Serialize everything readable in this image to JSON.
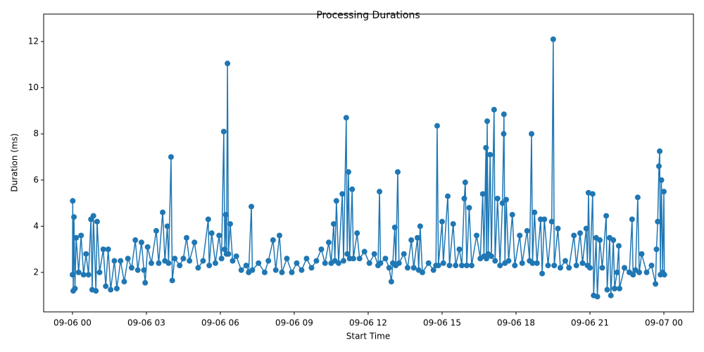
{
  "chart_data": {
    "type": "line",
    "title": "Processing Durations",
    "xlabel": "Start Time",
    "ylabel": "Duration (ms)",
    "x": [
      0,
      0.01,
      0.03,
      0.06,
      0.1,
      0.15,
      0.25,
      0.35,
      0.45,
      0.55,
      0.65,
      0.75,
      0.8,
      0.85,
      0.95,
      1.0,
      1.1,
      1.25,
      1.35,
      1.45,
      1.55,
      1.7,
      1.8,
      1.95,
      2.1,
      2.25,
      2.4,
      2.55,
      2.65,
      2.8,
      2.9,
      2.95,
      3.05,
      3.2,
      3.4,
      3.5,
      3.66,
      3.75,
      3.85,
      3.9,
      4.0,
      4.05,
      4.15,
      4.35,
      4.5,
      4.63,
      4.75,
      4.95,
      5.1,
      5.3,
      5.51,
      5.55,
      5.65,
      5.8,
      5.95,
      6.05,
      6.14,
      6.18,
      6.22,
      6.25,
      6.29,
      6.33,
      6.4,
      6.5,
      6.65,
      6.85,
      7.05,
      7.15,
      7.26,
      7.3,
      7.55,
      7.8,
      7.95,
      8.14,
      8.25,
      8.4,
      8.5,
      8.7,
      8.9,
      9.1,
      9.3,
      9.5,
      9.7,
      9.9,
      10.1,
      10.25,
      10.4,
      10.5,
      10.6,
      10.65,
      10.71,
      10.8,
      10.95,
      11.0,
      11.11,
      11.15,
      11.2,
      11.25,
      11.35,
      11.4,
      11.55,
      11.65,
      11.85,
      12.05,
      12.25,
      12.4,
      12.46,
      12.5,
      12.7,
      12.85,
      12.94,
      13.0,
      13.08,
      13.12,
      13.2,
      13.25,
      13.45,
      13.6,
      13.75,
      13.85,
      14.0,
      14.05,
      14.11,
      14.2,
      14.45,
      14.65,
      14.75,
      14.8,
      14.85,
      15.0,
      15.05,
      15.23,
      15.3,
      15.45,
      15.55,
      15.7,
      15.8,
      15.9,
      15.94,
      16.0,
      16.1,
      16.2,
      16.4,
      16.55,
      16.65,
      16.7,
      16.78,
      16.8,
      16.83,
      16.87,
      16.95,
      17.0,
      17.11,
      17.15,
      17.25,
      17.35,
      17.45,
      17.5,
      17.51,
      17.55,
      17.6,
      17.7,
      17.85,
      17.95,
      18.15,
      18.25,
      18.45,
      18.55,
      18.63,
      18.67,
      18.75,
      18.85,
      19.0,
      19.06,
      19.15,
      19.3,
      19.45,
      19.51,
      19.55,
      19.7,
      19.8,
      20.0,
      20.15,
      20.35,
      20.45,
      20.6,
      20.7,
      20.85,
      20.9,
      20.94,
      21.0,
      21.11,
      21.15,
      21.25,
      21.3,
      21.4,
      21.5,
      21.66,
      21.7,
      21.8,
      21.85,
      21.95,
      22.0,
      22.1,
      22.17,
      22.2,
      22.4,
      22.6,
      22.71,
      22.75,
      22.85,
      22.94,
      23.0,
      23.1,
      23.3,
      23.5,
      23.66,
      23.7,
      23.75,
      23.8,
      23.83,
      23.86,
      23.9,
      23.95,
      24.0,
      24.02
    ],
    "series": [
      {
        "name": "Duration",
        "color": "#1f77b4",
        "values": [
          1.9,
          5.1,
          1.2,
          4.4,
          1.3,
          3.5,
          2.0,
          3.6,
          1.9,
          2.8,
          1.9,
          4.3,
          1.25,
          4.45,
          1.2,
          4.2,
          2.0,
          3.0,
          1.4,
          3.0,
          1.25,
          2.5,
          1.3,
          2.5,
          1.6,
          2.6,
          2.2,
          3.4,
          2.1,
          3.3,
          2.1,
          1.55,
          3.1,
          2.4,
          3.8,
          2.4,
          4.6,
          2.5,
          4.0,
          2.4,
          7.0,
          1.65,
          2.6,
          2.3,
          2.6,
          3.5,
          2.5,
          3.3,
          2.2,
          2.5,
          4.3,
          2.3,
          3.7,
          2.4,
          3.6,
          2.6,
          8.1,
          3.0,
          4.5,
          2.8,
          11.05,
          2.8,
          4.1,
          2.5,
          2.7,
          2.1,
          2.3,
          2.0,
          4.85,
          2.1,
          2.4,
          2.0,
          2.5,
          3.4,
          2.1,
          3.6,
          2.0,
          2.6,
          2.0,
          2.4,
          2.1,
          2.6,
          2.2,
          2.5,
          3.0,
          2.4,
          3.3,
          2.4,
          4.1,
          2.5,
          5.1,
          2.4,
          5.4,
          2.5,
          8.7,
          2.8,
          6.35,
          2.6,
          5.6,
          2.6,
          3.7,
          2.6,
          2.9,
          2.4,
          2.8,
          2.3,
          5.5,
          2.4,
          2.6,
          2.2,
          1.6,
          2.4,
          3.95,
          2.3,
          6.35,
          2.4,
          2.8,
          2.2,
          3.4,
          2.2,
          3.5,
          2.1,
          4.0,
          2.0,
          2.4,
          2.1,
          2.3,
          8.35,
          2.3,
          4.2,
          2.4,
          5.3,
          2.3,
          4.1,
          2.3,
          3.0,
          2.3,
          5.2,
          5.9,
          2.3,
          4.8,
          2.3,
          3.6,
          2.6,
          5.4,
          2.7,
          7.4,
          2.6,
          8.55,
          2.8,
          7.1,
          2.7,
          9.05,
          2.5,
          5.2,
          2.3,
          5.0,
          8.0,
          8.85,
          2.4,
          5.15,
          2.5,
          4.5,
          2.3,
          3.6,
          2.4,
          3.8,
          2.5,
          8.0,
          2.4,
          4.6,
          2.4,
          4.3,
          1.95,
          4.3,
          2.3,
          4.2,
          12.1,
          2.3,
          3.9,
          2.2,
          2.5,
          2.2,
          3.6,
          2.3,
          3.7,
          2.4,
          3.9,
          2.3,
          5.45,
          2.2,
          5.4,
          1.0,
          3.5,
          0.95,
          3.4,
          2.2,
          4.45,
          1.25,
          3.5,
          1.0,
          3.4,
          1.3,
          2.0,
          3.15,
          1.3,
          2.2,
          2.0,
          4.3,
          1.9,
          2.1,
          5.25,
          2.0,
          2.8,
          2.0,
          2.3,
          1.5,
          3.0,
          4.2,
          6.6,
          7.25,
          1.9,
          6.0,
          2.0,
          5.5,
          1.9
        ]
      }
    ],
    "xlim": [
      -1.17,
      25.2
    ],
    "xticks": [
      {
        "value": 0,
        "label": "09-06 00"
      },
      {
        "value": 3,
        "label": "09-06 03"
      },
      {
        "value": 6,
        "label": "09-06 06"
      },
      {
        "value": 9,
        "label": "09-06 09"
      },
      {
        "value": 12,
        "label": "09-06 12"
      },
      {
        "value": 15,
        "label": "09-06 15"
      },
      {
        "value": 18,
        "label": "09-06 18"
      },
      {
        "value": 21,
        "label": "09-06 21"
      },
      {
        "value": 24,
        "label": "09-07 00"
      }
    ],
    "ylim": [
      0.29,
      13.19
    ],
    "yticks": [
      2,
      4,
      6,
      8,
      10,
      12
    ],
    "grid": false
  }
}
